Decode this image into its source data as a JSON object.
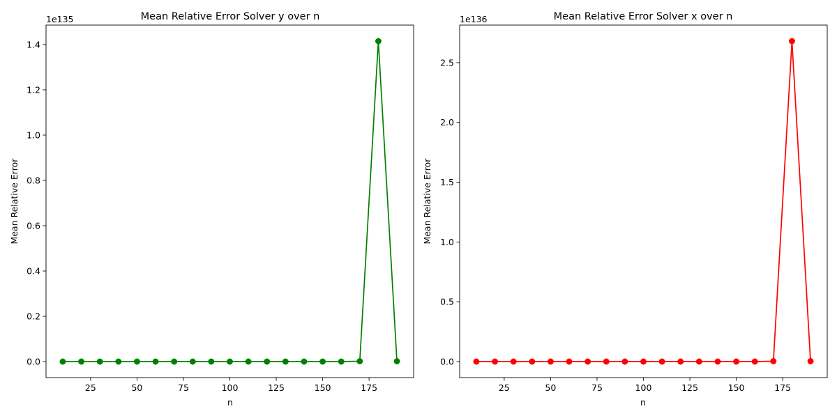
{
  "chart_data": [
    {
      "type": "line",
      "title": "Mean Relative Error Solver y over n",
      "xlabel": "n",
      "ylabel": "Mean Relative Error",
      "y_offset_text": "1e135",
      "x": [
        10,
        20,
        30,
        40,
        50,
        60,
        70,
        80,
        90,
        100,
        110,
        120,
        130,
        140,
        150,
        160,
        170,
        180,
        190
      ],
      "series": [
        {
          "color": "#008000",
          "marker": "circle",
          "values": [
            0,
            0,
            0,
            0,
            0,
            0,
            0,
            0,
            0,
            0,
            0,
            0,
            0,
            0,
            0,
            0,
            0.0015,
            1.415,
            0.0015
          ]
        }
      ],
      "xlim": [
        1,
        199
      ],
      "ylim": [
        -0.0707,
        1.486
      ],
      "xticks": [
        25,
        50,
        75,
        100,
        125,
        150,
        175
      ],
      "xtick_labels": [
        "25",
        "50",
        "75",
        "100",
        "125",
        "150",
        "175"
      ],
      "yticks": [
        0.0,
        0.2,
        0.4,
        0.6,
        0.8,
        1.0,
        1.2,
        1.4
      ],
      "ytick_labels": [
        "0.0",
        "0.2",
        "0.4",
        "0.6",
        "0.8",
        "1.0",
        "1.2",
        "1.4"
      ],
      "grid": false
    },
    {
      "type": "line",
      "title": "Mean Relative Error Solver x over n",
      "xlabel": "n",
      "ylabel": "Mean Relative Error",
      "y_offset_text": "1e136",
      "x": [
        10,
        20,
        30,
        40,
        50,
        60,
        70,
        80,
        90,
        100,
        110,
        120,
        130,
        140,
        150,
        160,
        170,
        180,
        190
      ],
      "series": [
        {
          "color": "#ff0000",
          "marker": "circle",
          "values": [
            0,
            0,
            0,
            0,
            0,
            0,
            0,
            0,
            0,
            0,
            0,
            0,
            0,
            0,
            0,
            0,
            0.003,
            2.68,
            0.003
          ]
        }
      ],
      "xlim": [
        1,
        199
      ],
      "ylim": [
        -0.134,
        2.814
      ],
      "xticks": [
        25,
        50,
        75,
        100,
        125,
        150,
        175
      ],
      "xtick_labels": [
        "25",
        "50",
        "75",
        "100",
        "125",
        "150",
        "175"
      ],
      "yticks": [
        0.0,
        0.5,
        1.0,
        1.5,
        2.0,
        2.5
      ],
      "ytick_labels": [
        "0.0",
        "0.5",
        "1.0",
        "1.5",
        "2.0",
        "2.5"
      ],
      "grid": false
    }
  ]
}
